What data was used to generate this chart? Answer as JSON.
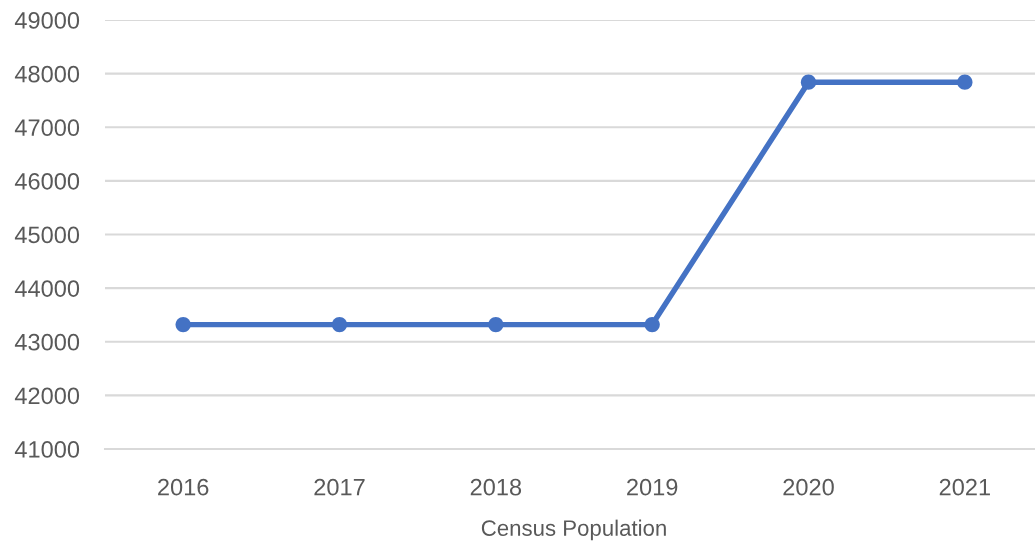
{
  "chart_data": {
    "type": "line",
    "xlabel": "Census Population",
    "categories": [
      "2016",
      "2017",
      "2018",
      "2019",
      "2020",
      "2021"
    ],
    "series": [
      {
        "color": "#4472c4",
        "values": [
          43320,
          43320,
          43320,
          43320,
          47840,
          47840
        ]
      }
    ],
    "ylim": [
      41000,
      49000
    ],
    "yticks": [
      41000,
      42000,
      43000,
      44000,
      45000,
      46000,
      47000,
      48000,
      49000
    ],
    "grid": "y",
    "marker": "circle",
    "line_style": "solid"
  }
}
